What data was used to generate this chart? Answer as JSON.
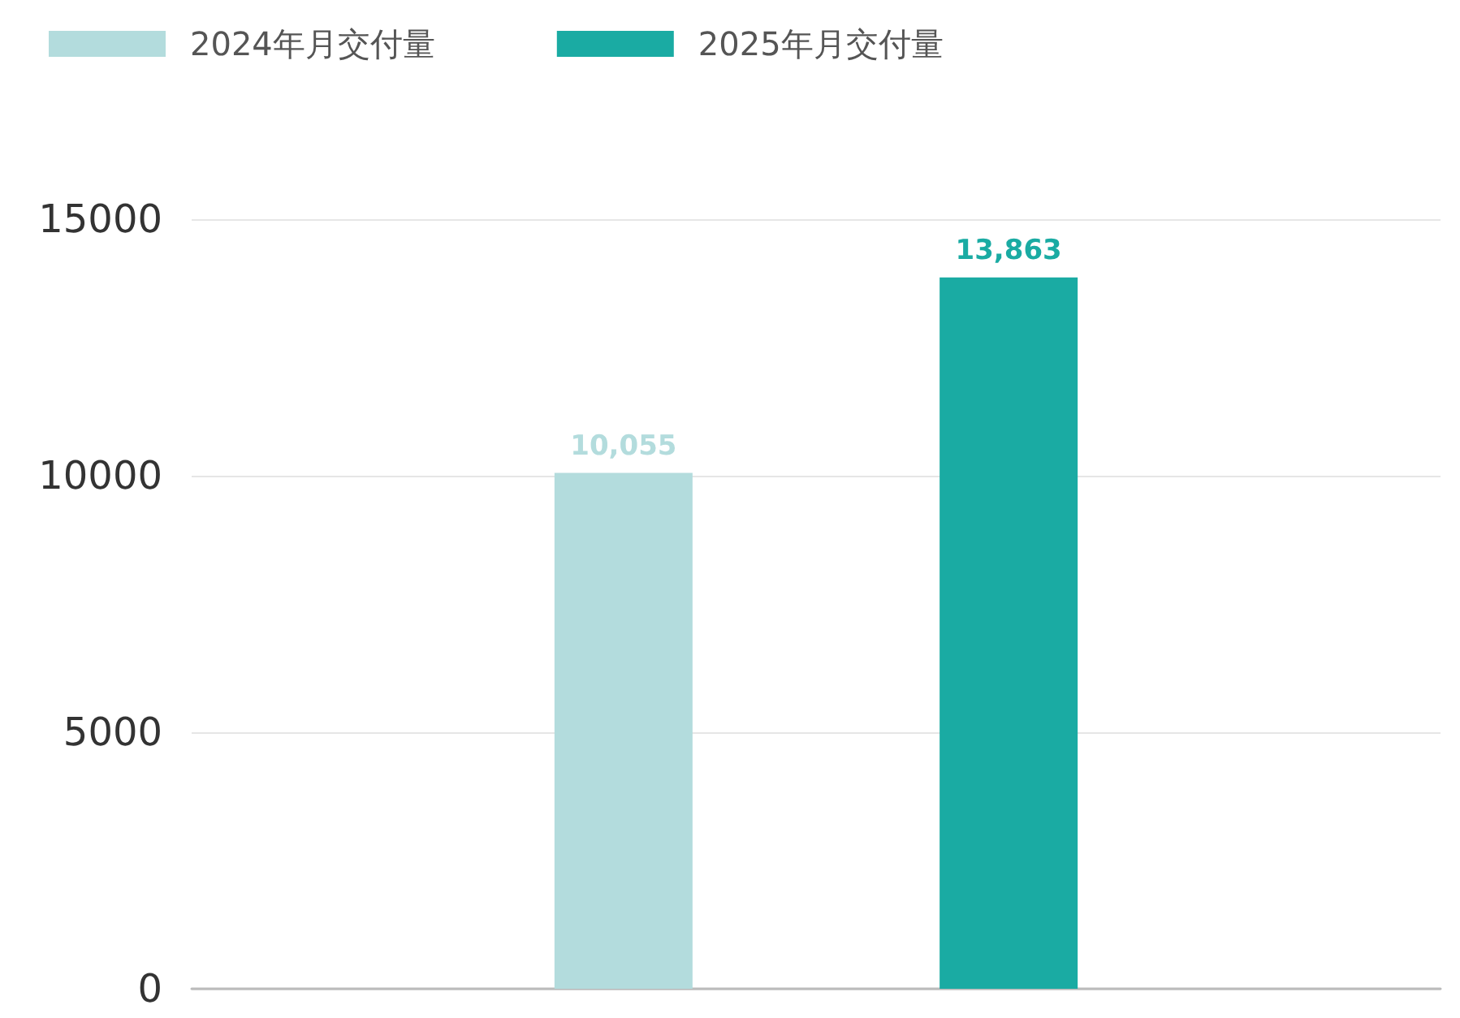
{
  "chart_data": {
    "type": "bar",
    "categories": [
      null
    ],
    "series": [
      {
        "name": "2024年月交付量",
        "color": "#b3dcdd",
        "values": [
          10055
        ],
        "value_labels": [
          "10,055"
        ]
      },
      {
        "name": "2025年月交付量",
        "color": "#1aaba3",
        "values": [
          13863
        ],
        "value_labels": [
          "13,863"
        ]
      }
    ],
    "ylim": [
      0,
      15000
    ],
    "yticks": [
      0,
      5000,
      10000,
      15000
    ],
    "grid": "y",
    "legend": "top left"
  }
}
